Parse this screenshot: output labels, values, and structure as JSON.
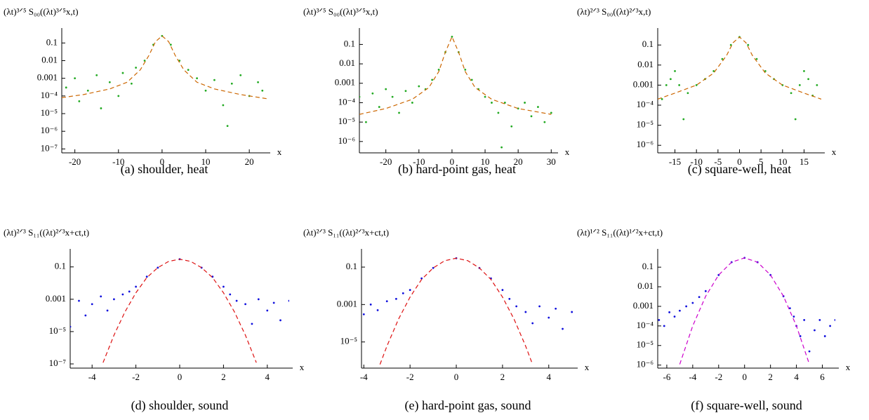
{
  "chart_data": [
    {
      "type": "scatter",
      "ylabel": "(λt)³ᐟ⁵ S₀₀((λt)³ᐟ⁵x,t)",
      "xlabel": "x",
      "caption": "(a) shoulder, heat",
      "log_y": true,
      "xlim": [
        -23,
        24
      ],
      "ylim": [
        6e-08,
        0.7
      ],
      "xticks": [
        -20,
        -10,
        0,
        10,
        20
      ],
      "yticks": [
        {
          "value": 1e-07,
          "label": "10⁻⁷"
        },
        {
          "value": 1e-06,
          "label": "10⁻⁶"
        },
        {
          "value": 1e-05,
          "label": "10⁻⁵"
        },
        {
          "value": 0.0001,
          "label": "10⁻⁴"
        },
        0.001,
        0.01,
        0.1
      ],
      "series": [
        {
          "style": "dots",
          "color": "#22aa22",
          "x": [
            -22,
            -20,
            -19,
            -17,
            -15,
            -14,
            -12,
            -10,
            -9,
            -7,
            -6,
            -4,
            -2,
            0,
            2,
            4,
            6,
            8,
            10,
            12,
            14,
            15,
            16,
            18,
            20,
            22,
            23
          ],
          "values": [
            0.0003,
            0.001,
            5e-05,
            0.0002,
            0.0015,
            2e-05,
            0.0006,
            0.0001,
            0.002,
            0.0005,
            0.004,
            0.01,
            0.08,
            0.25,
            0.08,
            0.01,
            0.003,
            0.001,
            0.0002,
            0.0008,
            3e-05,
            2e-06,
            0.0005,
            0.0015,
            0.0001,
            0.0006,
            0.0002
          ]
        },
        {
          "style": "dashed",
          "color": "#cc6600",
          "x": [
            -23,
            -18,
            -12,
            -8,
            -5,
            -3,
            -1.5,
            0,
            1.5,
            3,
            5,
            8,
            12,
            18,
            24
          ],
          "values": [
            8e-05,
            0.00012,
            0.00025,
            0.0006,
            0.003,
            0.02,
            0.12,
            0.25,
            0.12,
            0.02,
            0.003,
            0.0006,
            0.00025,
            0.00012,
            7e-05
          ]
        }
      ]
    },
    {
      "type": "scatter",
      "ylabel": "(λt)³ᐟ⁵ S₀₀((λt)³ᐟ⁵x,t)",
      "xlabel": "x",
      "caption": "(b) hard-point gas, heat",
      "log_y": true,
      "xlim": [
        -28,
        31
      ],
      "ylim": [
        2.6e-07,
        0.7
      ],
      "xticks": [
        -20,
        -10,
        0,
        10,
        20,
        30
      ],
      "yticks": [
        {
          "value": 1e-06,
          "label": "10⁻⁶"
        },
        {
          "value": 1e-05,
          "label": "10⁻⁵"
        },
        {
          "value": 0.0001,
          "label": "10⁻⁴"
        },
        0.001,
        0.01,
        0.1
      ],
      "series": [
        {
          "style": "dots",
          "color": "#22aa22",
          "x": [
            -28,
            -26,
            -24,
            -22,
            -20,
            -18,
            -16,
            -14,
            -12,
            -10,
            -8,
            -6,
            -4,
            -2,
            0,
            2,
            4,
            6,
            8,
            10,
            12,
            14,
            15,
            16,
            18,
            20,
            22,
            24,
            26,
            28,
            30
          ],
          "values": [
            0.0002,
            1e-05,
            0.0003,
            6e-05,
            0.0005,
            0.0002,
            3e-05,
            0.0004,
            0.0001,
            0.0007,
            0.0005,
            0.0015,
            0.005,
            0.04,
            0.25,
            0.04,
            0.005,
            0.0015,
            0.0005,
            0.0002,
            0.0001,
            3e-05,
            5e-07,
            0.0001,
            6e-06,
            5e-05,
            0.0001,
            2e-05,
            6e-05,
            1e-05,
            3e-05
          ]
        },
        {
          "style": "dashed",
          "color": "#cc6600",
          "x": [
            -28,
            -20,
            -12,
            -7,
            -4,
            -2,
            0,
            2,
            4,
            7,
            12,
            20,
            30
          ],
          "values": [
            2.5e-05,
            5e-05,
            0.00015,
            0.0006,
            0.004,
            0.04,
            0.25,
            0.04,
            0.004,
            0.0006,
            0.00015,
            5e-05,
            2.5e-05
          ]
        }
      ]
    },
    {
      "type": "scatter",
      "ylabel": "(λt)²ᐟ³ S₀₀((λt)²ᐟ³x,t)",
      "xlabel": "x",
      "caption": "(c) square-well, heat",
      "log_y": true,
      "xlim": [
        -19,
        19
      ],
      "ylim": [
        4.2e-07,
        0.7
      ],
      "xticks": [
        -15,
        -10,
        -5,
        0,
        5,
        10,
        15
      ],
      "yticks": [
        {
          "value": 1e-06,
          "label": "10⁻⁶"
        },
        {
          "value": 1e-05,
          "label": "10⁻⁵"
        },
        {
          "value": 0.0001,
          "label": "10⁻⁴"
        },
        0.001,
        0.01,
        0.1
      ],
      "series": [
        {
          "style": "dots",
          "color": "#22aa22",
          "x": [
            -18,
            -17,
            -16,
            -15,
            -14,
            -13,
            -12,
            -10,
            -8,
            -6,
            -4,
            -2,
            0,
            2,
            4,
            6,
            8,
            10,
            12,
            13,
            14,
            15,
            16,
            17,
            18
          ],
          "values": [
            0.0002,
            0.001,
            0.002,
            0.005,
            0.001,
            2e-05,
            0.0004,
            0.001,
            0.002,
            0.005,
            0.02,
            0.1,
            0.25,
            0.1,
            0.02,
            0.005,
            0.002,
            0.001,
            0.0004,
            2e-05,
            0.001,
            0.005,
            0.002,
            0.0003,
            0.001
          ]
        },
        {
          "style": "dashed",
          "color": "#cc6600",
          "x": [
            -19,
            -15,
            -10,
            -6,
            -3,
            -1.5,
            0,
            1.5,
            3,
            6,
            10,
            15,
            19
          ],
          "values": [
            0.0002,
            0.0004,
            0.001,
            0.004,
            0.03,
            0.13,
            0.25,
            0.13,
            0.03,
            0.004,
            0.001,
            0.0004,
            0.0002
          ]
        }
      ]
    },
    {
      "type": "scatter",
      "ylabel": "(λt)²ᐟ³ S₁₁((λt)²ᐟ³x+ct,t)",
      "xlabel": "x",
      "caption": "(d) shoulder, sound",
      "log_y": true,
      "xlim": [
        -5,
        5
      ],
      "ylim": [
        5.5e-08,
        1.3
      ],
      "xticks": [
        -4,
        -2,
        0,
        2,
        4
      ],
      "yticks": [
        {
          "value": 1e-07,
          "label": "10⁻⁷"
        },
        {
          "value": 1e-05,
          "label": "10⁻⁵"
        },
        0.001,
        0.1
      ],
      "series": [
        {
          "style": "dots",
          "color": "#1010dd",
          "x": [
            -5,
            -4.6,
            -4.3,
            -4,
            -3.6,
            -3.3,
            -3,
            -2.6,
            -2.3,
            -2,
            -1.5,
            -1,
            0,
            1,
            1.5,
            2,
            2.3,
            2.6,
            3,
            3.3,
            3.6,
            4,
            4.3,
            4.6,
            5
          ],
          "values": [
            2e-05,
            0.0008,
            0.0001,
            0.0005,
            0.0015,
            0.0002,
            0.001,
            0.002,
            0.003,
            0.006,
            0.025,
            0.09,
            0.3,
            0.09,
            0.025,
            0.006,
            0.002,
            0.0008,
            0.0005,
            3e-05,
            0.001,
            0.0002,
            0.0006,
            5e-05,
            0.0008
          ]
        },
        {
          "style": "dashed",
          "color": "#dd1111",
          "x": [
            -3.5,
            -3,
            -2.5,
            -2,
            -1.5,
            -1,
            -0.5,
            0,
            0.5,
            1,
            1.5,
            2,
            2.5,
            3,
            3.5
          ],
          "values": [
            1.2e-07,
            6e-06,
            0.000165,
            0.0025,
            0.022,
            0.09,
            0.22,
            0.3,
            0.22,
            0.09,
            0.022,
            0.0025,
            0.000165,
            6e-06,
            1.2e-07
          ]
        }
      ]
    },
    {
      "type": "scatter",
      "ylabel": "(λt)²ᐟ³ S₁₁((λt)²ᐟ³x+ct,t)",
      "xlabel": "x",
      "caption": "(e) hard-point gas, sound",
      "log_y": true,
      "xlim": [
        -4.1,
        5.1
      ],
      "ylim": [
        4e-07,
        0.94
      ],
      "xticks": [
        -4,
        -2,
        0,
        2,
        4
      ],
      "yticks": [
        {
          "value": 1e-05,
          "label": "10⁻⁵"
        },
        0.001,
        0.1
      ],
      "series": [
        {
          "style": "dots",
          "color": "#1010dd",
          "x": [
            -4,
            -3.7,
            -3.4,
            -3,
            -2.6,
            -2.3,
            -2,
            -1.5,
            -1,
            0,
            1,
            1.5,
            2,
            2.3,
            2.6,
            3,
            3.3,
            3.6,
            4,
            4.3,
            4.6,
            5
          ],
          "values": [
            0.0003,
            0.001,
            0.0005,
            0.0015,
            0.002,
            0.004,
            0.006,
            0.025,
            0.09,
            0.3,
            0.09,
            0.025,
            0.006,
            0.002,
            0.0008,
            0.0004,
            0.0001,
            0.0008,
            0.0002,
            0.0006,
            5e-05,
            0.0004
          ]
        },
        {
          "style": "dashed",
          "color": "#dd1111",
          "x": [
            -3.3,
            -3,
            -2.5,
            -2,
            -1.5,
            -1,
            -0.5,
            0,
            0.5,
            1,
            1.5,
            2,
            2.5,
            3,
            3.3
          ],
          "values": [
            6.3e-07,
            6e-06,
            0.000165,
            0.0025,
            0.022,
            0.09,
            0.22,
            0.3,
            0.22,
            0.09,
            0.022,
            0.0025,
            0.000165,
            6e-06,
            6.3e-07
          ]
        }
      ]
    },
    {
      "type": "scatter",
      "ylabel": "(λt)¹ᐟ² S₁₁((λt)¹ᐟ²x+ct,t)",
      "xlabel": "x",
      "caption": "(f) square-well, sound",
      "log_y": true,
      "xlim": [
        -6.7,
        7
      ],
      "ylim": [
        7e-07,
        0.86
      ],
      "xticks": [
        -6,
        -4,
        -2,
        0,
        2,
        4,
        6
      ],
      "yticks": [
        {
          "value": 1e-06,
          "label": "10⁻⁶"
        },
        {
          "value": 1e-05,
          "label": "10⁻⁵"
        },
        {
          "value": 0.0001,
          "label": "10⁻⁴"
        },
        0.001,
        0.01,
        0.1
      ],
      "series": [
        {
          "style": "dots",
          "color": "#1010dd",
          "x": [
            -6.6,
            -6.2,
            -5.8,
            -5.4,
            -5,
            -4.5,
            -4,
            -3.5,
            -3,
            -2,
            -1,
            0,
            1,
            2,
            3,
            3.5,
            3.8,
            4,
            4.3,
            4.6,
            5,
            5.4,
            5.8,
            6.2,
            6.6,
            7
          ],
          "values": [
            0.0002,
            0.0001,
            0.0005,
            0.0003,
            0.0006,
            0.001,
            0.0015,
            0.003,
            0.006,
            0.04,
            0.18,
            0.3,
            0.18,
            0.04,
            0.0033,
            0.0008,
            0.0003,
            0.0001,
            3e-05,
            0.0002,
            5e-06,
            6e-05,
            0.0002,
            3e-05,
            0.0001,
            0.0002
          ]
        },
        {
          "style": "dashed",
          "color": "#cc00cc",
          "x": [
            -5,
            -4,
            -3,
            -2,
            -1,
            0,
            1,
            2,
            3,
            4,
            5
          ],
          "values": [
            1.1e-06,
            0.0001,
            0.0033,
            0.04,
            0.18,
            0.3,
            0.18,
            0.04,
            0.0033,
            0.0001,
            1.1e-06
          ]
        }
      ]
    }
  ]
}
